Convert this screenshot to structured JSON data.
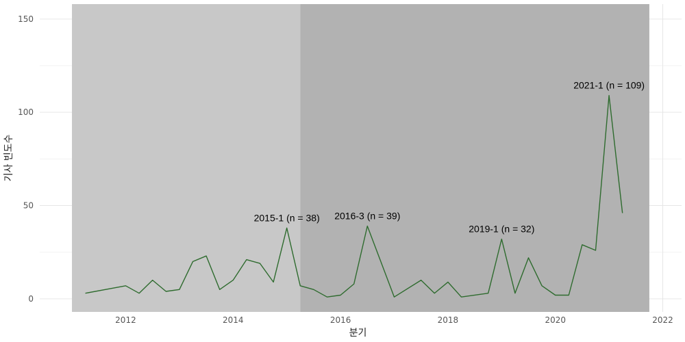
{
  "chart_data": {
    "type": "line",
    "title": "",
    "xlabel": "분기",
    "ylabel": "기사 빈도수",
    "xlim": [
      2010.4,
      2022.35
    ],
    "ylim": [
      -7,
      158
    ],
    "x_ticks": [
      2012,
      2014,
      2016,
      2018,
      2020,
      2022
    ],
    "y_ticks": [
      0,
      50,
      100,
      150
    ],
    "grid": true,
    "line_color": "#2e6b2e",
    "shaded_periods": [
      {
        "from": 2011.0,
        "to": 2015.25,
        "color": "#c8c8c8"
      },
      {
        "from": 2015.25,
        "to": 2021.75,
        "color": "#b2b2b2"
      }
    ],
    "series": [
      {
        "x": [
          2011.25,
          2012.0,
          2012.25,
          2012.5,
          2012.75,
          2013.0,
          2013.25,
          2013.5,
          2013.75,
          2014.0,
          2014.25,
          2014.5,
          2014.75,
          2015.0,
          2015.25,
          2015.5,
          2015.75,
          2016.0,
          2016.25,
          2016.5,
          2017.0,
          2017.5,
          2017.75,
          2018.0,
          2018.25,
          2018.75,
          2019.0,
          2019.25,
          2019.5,
          2019.75,
          2020.0,
          2020.25,
          2020.5,
          2020.75,
          2021.0,
          2021.25
        ],
        "y": [
          3,
          7,
          3,
          10,
          4,
          5,
          20,
          23,
          5,
          10,
          21,
          19,
          9,
          38,
          7,
          5,
          1,
          2,
          8,
          39,
          1,
          10,
          3,
          9,
          1,
          3,
          32,
          3,
          22,
          7,
          2,
          2,
          29,
          26,
          109,
          46
        ]
      }
    ],
    "annotations": [
      {
        "text": "2015-1 (n = 38)",
        "x": 2015.0,
        "y": 38
      },
      {
        "text": "2016-3 (n = 39)",
        "x": 2016.5,
        "y": 39
      },
      {
        "text": "2019-1 (n = 32)",
        "x": 2019.0,
        "y": 32
      },
      {
        "text": "2021-1 (n = 109)",
        "x": 2021.0,
        "y": 109
      }
    ]
  }
}
